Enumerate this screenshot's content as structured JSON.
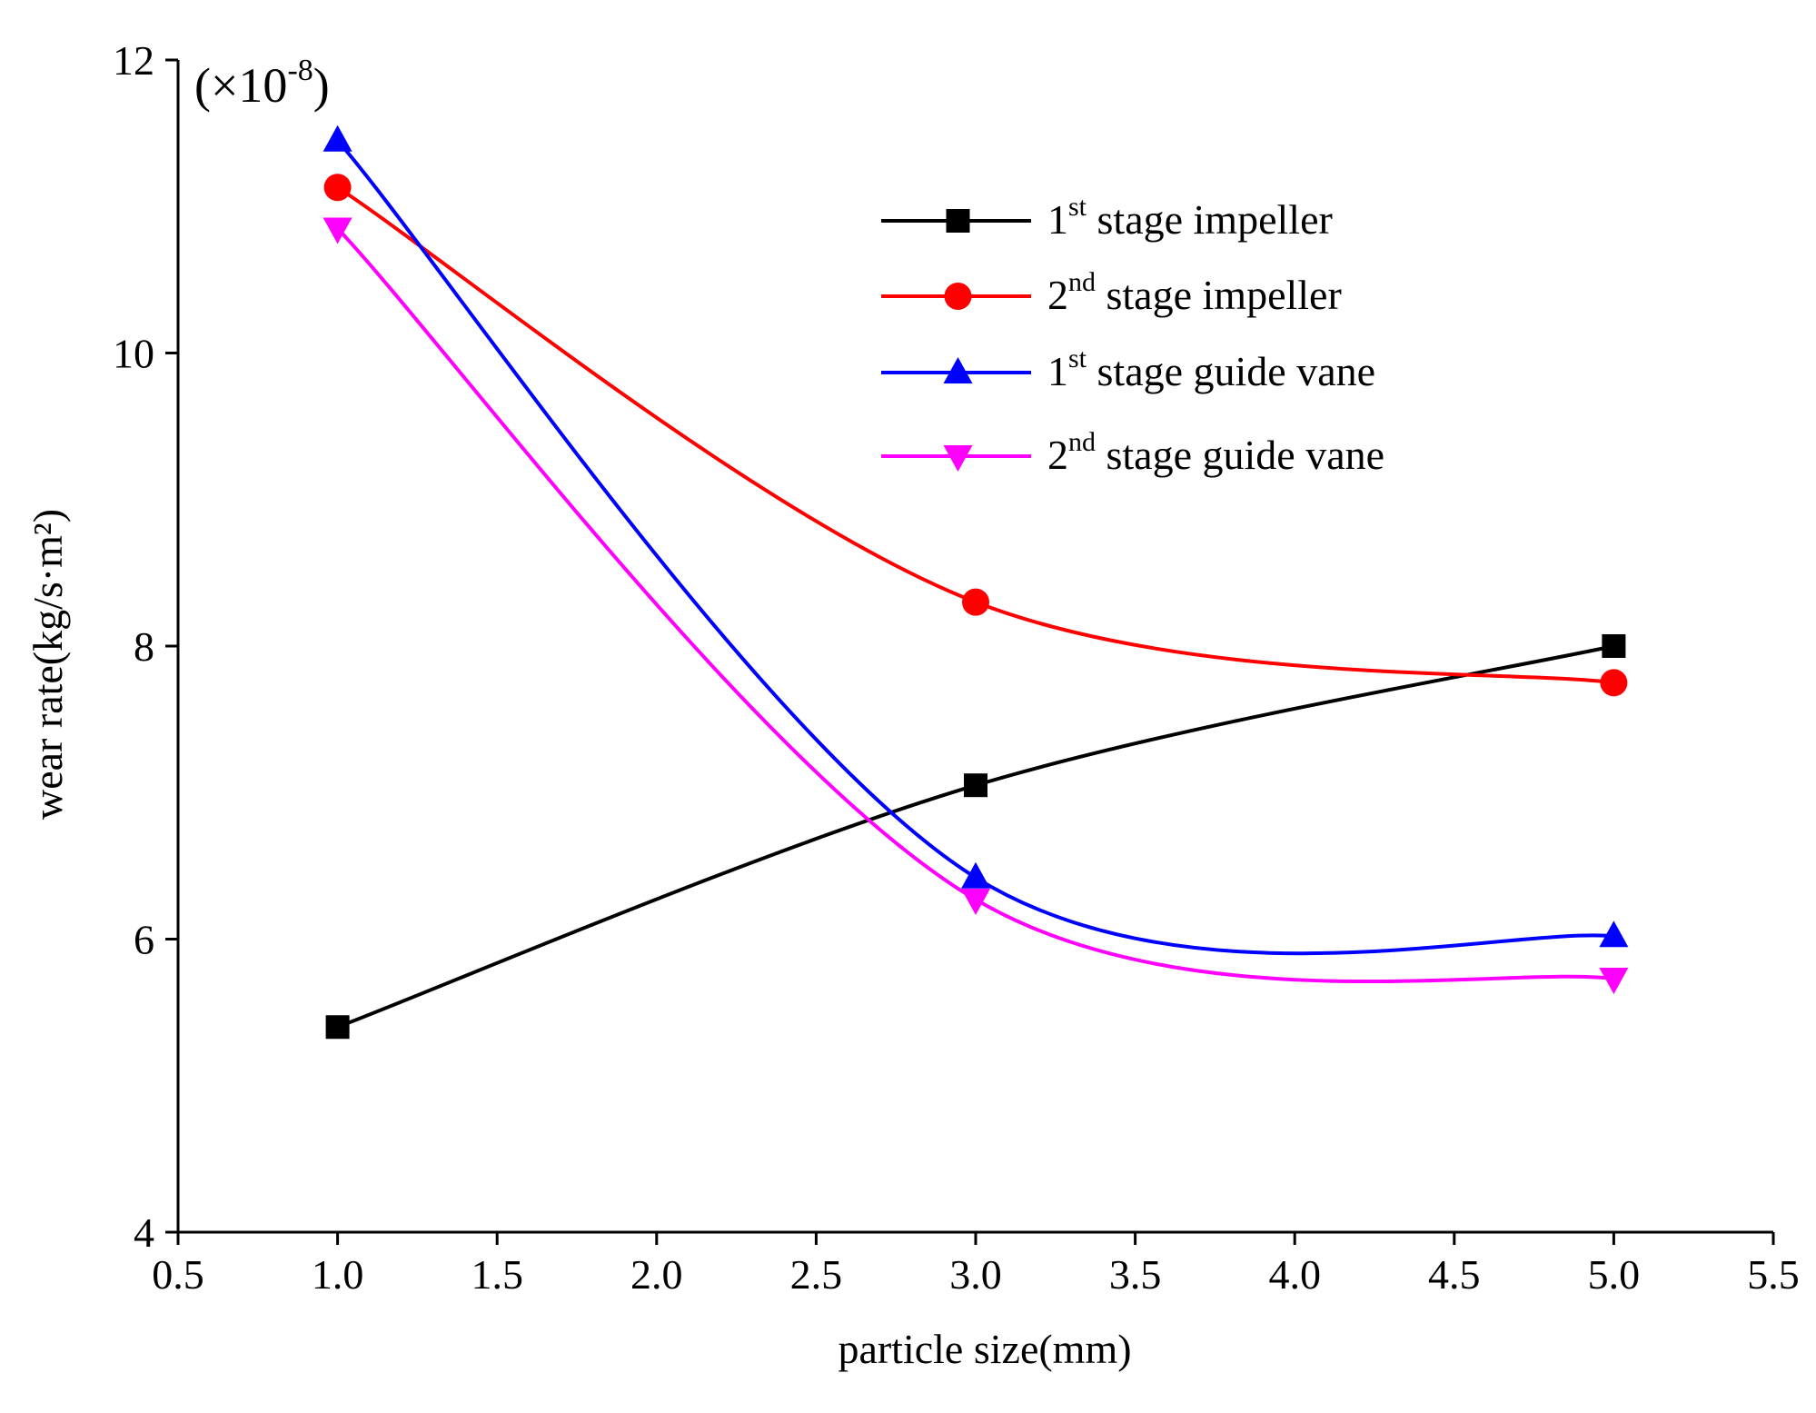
{
  "chart_data": {
    "type": "line",
    "title": "",
    "xlabel": "particle size(mm)",
    "ylabel": "wear rate(kg/s·m²)",
    "y_multiplier": {
      "prefix": "(×10",
      "exponent": "-8",
      "suffix": ")"
    },
    "xlim": [
      0.5,
      5.5
    ],
    "ylim": [
      4,
      12
    ],
    "xticks": [
      "0.5",
      "1.0",
      "1.5",
      "2.0",
      "2.5",
      "3.0",
      "3.5",
      "4.0",
      "4.5",
      "5.0",
      "5.5"
    ],
    "yticks": [
      "4",
      "6",
      "8",
      "10",
      "12"
    ],
    "grid": false,
    "legend_position": "top-right",
    "x": [
      1.0,
      3.0,
      5.0
    ],
    "series": [
      {
        "name_main": "1",
        "name_sup": "st",
        "name_rest": " stage impeller",
        "marker": "square",
        "color": "#000000",
        "smooth": false,
        "values": [
          5.4,
          7.05,
          8.0
        ]
      },
      {
        "name_main": "2",
        "name_sup": "nd",
        "name_rest": " stage impeller",
        "marker": "circle",
        "color": "#ff0000",
        "smooth": true,
        "values": [
          11.13,
          8.3,
          7.75
        ]
      },
      {
        "name_main": "1",
        "name_sup": "st",
        "name_rest": " stage guide vane",
        "marker": "triangle-up",
        "color": "#0000ff",
        "smooth": true,
        "values": [
          11.45,
          6.42,
          6.02
        ]
      },
      {
        "name_main": "2",
        "name_sup": "nd",
        "name_rest": " stage guide vane",
        "marker": "triangle-down",
        "color": "#ff00ff",
        "smooth": true,
        "values": [
          10.85,
          6.27,
          5.73
        ]
      }
    ]
  }
}
